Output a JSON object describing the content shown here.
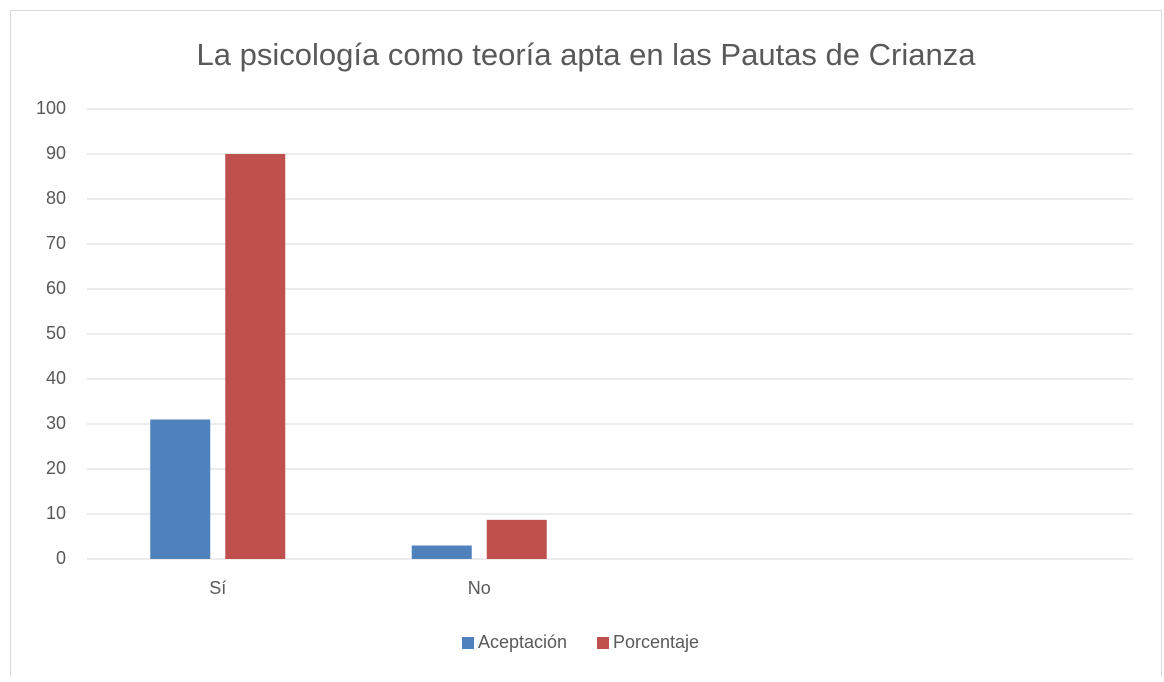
{
  "chart_data": {
    "type": "bar",
    "title": "La psicología como teoría apta en las Pautas de Crianza",
    "categories": [
      "Sí",
      "No",
      null,
      null
    ],
    "series": [
      {
        "name": "Aceptación",
        "color": "#4f81bd",
        "values": [
          31,
          3,
          null,
          null
        ]
      },
      {
        "name": "Porcentaje",
        "color": "#c0504d",
        "values": [
          90,
          8.7,
          null,
          null
        ]
      }
    ],
    "ylim": [
      0,
      100
    ],
    "yticks": [
      0,
      10,
      20,
      30,
      40,
      50,
      60,
      70,
      80,
      90,
      100
    ],
    "grid": true,
    "legend": "bottom"
  }
}
